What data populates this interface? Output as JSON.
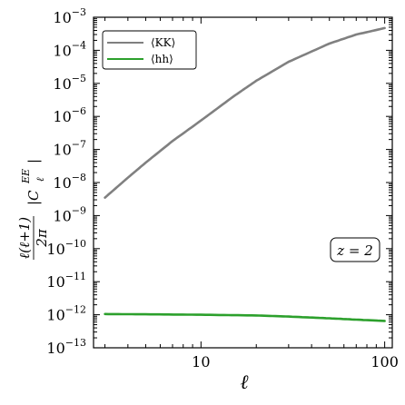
{
  "chart_data": {
    "type": "line",
    "xscale": "log",
    "yscale": "log",
    "xlim": [
      2.6,
      110
    ],
    "ylim": [
      1e-13,
      0.001
    ],
    "xlabel": "ℓ",
    "ylabel": "ℓ(ℓ+1)/2π |C_ℓ^{EE}|",
    "x_ticks": [
      {
        "value": 10,
        "label": "10"
      },
      {
        "value": 100,
        "label": "100"
      }
    ],
    "y_ticks": [
      {
        "value": 0.001,
        "base": "10",
        "exp": "−3"
      },
      {
        "value": 0.0001,
        "base": "10",
        "exp": "−4"
      },
      {
        "value": 1e-05,
        "base": "10",
        "exp": "−5"
      },
      {
        "value": 1e-06,
        "base": "10",
        "exp": "−6"
      },
      {
        "value": 1e-07,
        "base": "10",
        "exp": "−7"
      },
      {
        "value": 1e-08,
        "base": "10",
        "exp": "−8"
      },
      {
        "value": 1e-09,
        "base": "10",
        "exp": "−9"
      },
      {
        "value": 1e-10,
        "base": "10",
        "exp": "−10"
      },
      {
        "value": 1e-11,
        "base": "10",
        "exp": "−11"
      },
      {
        "value": 1e-12,
        "base": "10",
        "exp": "−12"
      },
      {
        "value": 1e-13,
        "base": "10",
        "exp": "−13"
      }
    ],
    "series": [
      {
        "name": "⟨KK⟩",
        "color": "#808080",
        "x": [
          3,
          4,
          5,
          7,
          10,
          15,
          20,
          30,
          50,
          70,
          100
        ],
        "y": [
          3.5e-09,
          1.4e-08,
          4e-08,
          1.8e-07,
          7.5e-07,
          4e-06,
          1.2e-05,
          4.5e-05,
          0.00016,
          0.0003,
          0.00047
        ]
      },
      {
        "name": "⟨hh⟩",
        "color": "#2ca02c",
        "x": [
          3,
          5,
          10,
          20,
          30,
          50,
          70,
          100
        ],
        "y": [
          1.05e-12,
          1.03e-12,
          1e-12,
          9.5e-13,
          8.8e-13,
          7.8e-13,
          7.1e-13,
          6.5e-13
        ]
      }
    ],
    "annotation": "z = 2",
    "legend_position": "top-left",
    "grid": false
  }
}
